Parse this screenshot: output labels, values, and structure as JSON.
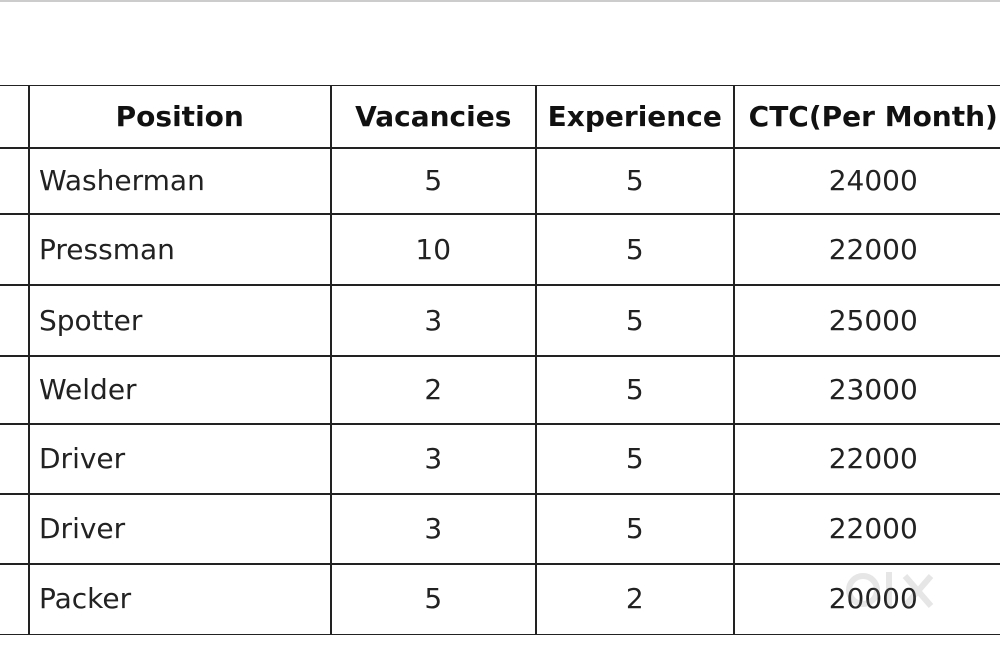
{
  "table": {
    "header": [
      "Position",
      "Vacancies",
      "Experience",
      "CTC(Per Month)"
    ],
    "rows": [
      [
        "Washerman",
        5,
        5,
        24000
      ],
      [
        "Pressman",
        10,
        5,
        22000
      ],
      [
        "Spotter",
        3,
        5,
        25000
      ],
      [
        "Welder",
        2,
        5,
        23000
      ],
      [
        "Driver",
        3,
        5,
        22000
      ],
      [
        "Driver",
        3,
        5,
        22000
      ],
      [
        "Packer",
        5,
        2,
        20000
      ]
    ]
  }
}
